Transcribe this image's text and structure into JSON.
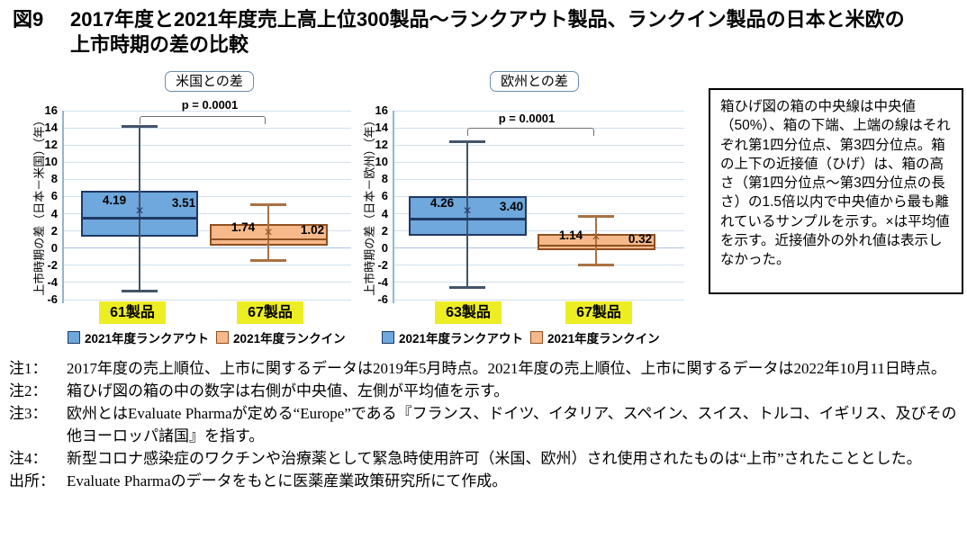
{
  "title": {
    "number": "図9",
    "text": "2017年度と2021年度売上高上位300製品～ランクアウト製品、ランクイン製品の日本と米欧の上市時期の差の比較"
  },
  "colors": {
    "rankout_fill": "#6FA8DC",
    "rankout_border": "#1F3864",
    "rankout_whisker": "#44546A",
    "rankin_fill": "#F6B98C",
    "rankin_border": "#8F4F1F",
    "rankin_whisker": "#A97142",
    "highlight_yellow": "#EDED24",
    "grid": "#D3DFEE",
    "grid_zero": "#AFC4DE",
    "axis": "#95B3D7",
    "bracket": "#707070",
    "pill_border": "#6B8CAE"
  },
  "chart_data": [
    {
      "type": "boxplot",
      "title": "米国との差",
      "p_value_label": "p = 0.0001",
      "ylabel": "上市時期の差（日本－米国）（年）",
      "ylim": [
        -6,
        16
      ],
      "yticks": [
        16,
        14,
        12,
        10,
        8,
        6,
        4,
        2,
        0,
        -2,
        -4,
        -6
      ],
      "series": [
        {
          "name": "2021年度ランクアウト",
          "count_label": "61製品",
          "mean": 4.19,
          "mean_label": "4.19",
          "median": 3.51,
          "median_label": "3.51",
          "q1": 1.3,
          "q3": 6.7,
          "whisker_low": -5.0,
          "whisker_high": 14.2
        },
        {
          "name": "2021年度ランクイン",
          "count_label": "67製品",
          "mean": 1.74,
          "mean_label": "1.74",
          "median": 1.02,
          "median_label": "1.02",
          "q1": 0.3,
          "q3": 2.8,
          "whisker_low": -1.4,
          "whisker_high": 5.1
        }
      ],
      "legend": [
        {
          "label": "2021年度ランクアウト"
        },
        {
          "label": "2021年度ランクイン"
        }
      ]
    },
    {
      "type": "boxplot",
      "title": "欧州との差",
      "p_value_label": "p = 0.0001",
      "ylabel": "上市時期の差（日本－欧州）（年）",
      "ylim": [
        -6,
        16
      ],
      "yticks": [
        16,
        14,
        12,
        10,
        8,
        6,
        4,
        2,
        0,
        -2,
        -4,
        -6
      ],
      "series": [
        {
          "name": "2021年度ランクアウト",
          "count_label": "63製品",
          "mean": 4.26,
          "mean_label": "4.26",
          "median": 3.4,
          "median_label": "3.40",
          "q1": 1.4,
          "q3": 6.0,
          "whisker_low": -4.6,
          "whisker_high": 12.4
        },
        {
          "name": "2021年度ランクイン",
          "count_label": "67製品",
          "mean": 1.14,
          "mean_label": "1.14",
          "median": 0.32,
          "median_label": "0.32",
          "q1": -0.2,
          "q3": 1.6,
          "whisker_low": -2.0,
          "whisker_high": 3.7
        }
      ],
      "legend": [
        {
          "label": "2021年度ランクアウト"
        },
        {
          "label": "2021年度ランクイン"
        }
      ]
    }
  ],
  "explanation": "箱ひげ図の箱の中央線は中央値（50%）、箱の下端、上端の線はそれぞれ第1四分位点、第3四分位点。箱の上下の近接値（ひげ）は、箱の高さ（第1四分位点～第3四分位点の長さ）の1.5倍以内で中央値から最も離れているサンプルを示す。×は平均値を示す。近接値外の外れ値は表示しなかった。",
  "notes": [
    {
      "label": "注1：",
      "text": "2017年度の売上順位、上市に関するデータは2019年5月時点。2021年度の売上順位、上市に関するデータは2022年10月11日時点。"
    },
    {
      "label": "注2：",
      "text": "箱ひげ図の箱の中の数字は右側が中央値、左側が平均値を示す。"
    },
    {
      "label": "注3：",
      "text": "欧州とはEvaluate Pharmaが定める“Europe”である『フランス、ドイツ、イタリア、スペイン、スイス、トルコ、イギリス、及びその他ヨーロッパ諸国』を指す。"
    },
    {
      "label": "注4：",
      "text": "新型コロナ感染症のワクチンや治療薬として緊急時使用許可（米国、欧州）され使用されたものは“上市”されたこととした。"
    }
  ],
  "source": {
    "label": "出所：",
    "text": "Evaluate Pharmaのデータをもとに医薬産業政策研究所にて作成。"
  }
}
